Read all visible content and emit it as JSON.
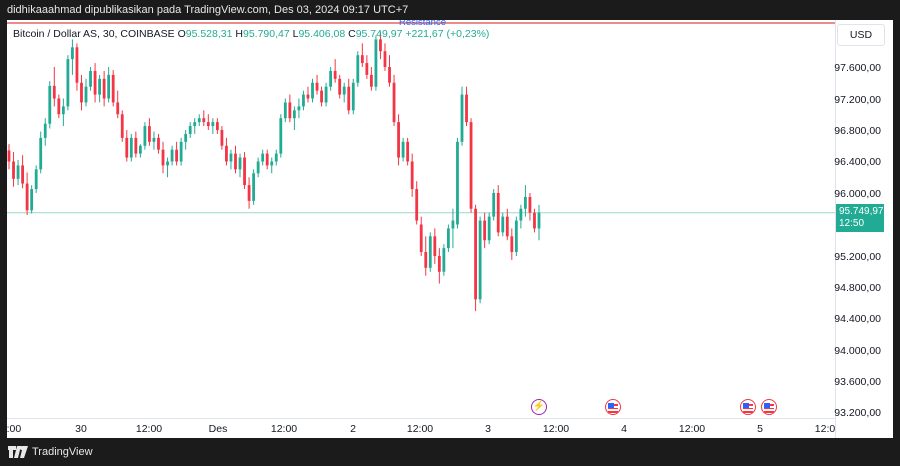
{
  "header": {
    "text": "didhikaaahmad dipublikasikan pada TradingView.com, Des 03, 2024 09:17 UTC+7"
  },
  "legend": {
    "symbol": "Bitcoin / Dollar AS, 30, COINBASE",
    "o_label": "O",
    "o_value": "95.528,31",
    "h_label": "H",
    "h_value": "95.790,47",
    "l_label": "L",
    "l_value": "95.406,08",
    "c_label": "C",
    "c_value": "95.749,97",
    "change": "+221,67 (+0,23%)"
  },
  "currency_button": "USD",
  "resistance_label": "Resistance",
  "price_tag": {
    "price": "95.749,97",
    "countdown": "12:50"
  },
  "y_axis": {
    "labels": [
      "97.600,00",
      "97.200,00",
      "96.800,00",
      "96.400,00",
      "96.000,00",
      "95.200,00",
      "94.800,00",
      "94.400,00",
      "94.000,00",
      "93.600,00",
      "93.200,00"
    ]
  },
  "x_axis": {
    "labels": [
      "2:00",
      "30",
      "12:00",
      "Des",
      "12:00",
      "2",
      "12:00",
      "3",
      "12:00",
      "4",
      "12:00",
      "5",
      "12:0"
    ]
  },
  "footer": {
    "brand": "TradingView"
  },
  "colors": {
    "up": "#22ab94",
    "down": "#f23645",
    "accent": "#2962ff",
    "resistance": "#e06666"
  },
  "events": [
    "lightning-event-icon",
    "us-flag-event-icon",
    "us-flag-event-icon",
    "us-flag-event-icon"
  ],
  "chart_data": {
    "type": "candlestick",
    "symbol": "Bitcoin / Dollar AS, 30, COINBASE",
    "ylim": [
      93200,
      97800
    ],
    "current_price": 95749.97,
    "resistance": 97950,
    "candles": [
      [
        96540,
        96620,
        96300,
        96400
      ],
      [
        96400,
        96520,
        96080,
        96180
      ],
      [
        96180,
        96420,
        96100,
        96350
      ],
      [
        96350,
        96480,
        96060,
        96120
      ],
      [
        96120,
        96260,
        95720,
        95780
      ],
      [
        95780,
        96100,
        95740,
        96050
      ],
      [
        96050,
        96350,
        96000,
        96300
      ],
      [
        96300,
        96780,
        96250,
        96700
      ],
      [
        96700,
        96950,
        96600,
        96880
      ],
      [
        96880,
        97420,
        96820,
        97360
      ],
      [
        97360,
        97600,
        97100,
        97200
      ],
      [
        97200,
        97250,
        96950,
        97000
      ],
      [
        97000,
        97200,
        96850,
        97100
      ],
      [
        97100,
        97750,
        97050,
        97700
      ],
      [
        97700,
        97950,
        97500,
        97850
      ],
      [
        97850,
        97900,
        97300,
        97400
      ],
      [
        97400,
        97500,
        97050,
        97150
      ],
      [
        97150,
        97450,
        97100,
        97350
      ],
      [
        97350,
        97600,
        97300,
        97550
      ],
      [
        97550,
        97650,
        97150,
        97250
      ],
      [
        97250,
        97500,
        97150,
        97450
      ],
      [
        97450,
        97550,
        97100,
        97200
      ],
      [
        97200,
        97600,
        97150,
        97500
      ],
      [
        97500,
        97560,
        97100,
        97150
      ],
      [
        97150,
        97300,
        96950,
        97000
      ],
      [
        97000,
        97050,
        96650,
        96700
      ],
      [
        96700,
        96800,
        96400,
        96450
      ],
      [
        96450,
        96750,
        96400,
        96700
      ],
      [
        96700,
        96780,
        96450,
        96500
      ],
      [
        96500,
        96620,
        96450,
        96600
      ],
      [
        96600,
        96900,
        96550,
        96850
      ],
      [
        96850,
        96950,
        96600,
        96650
      ],
      [
        96650,
        96780,
        96550,
        96700
      ],
      [
        96700,
        96750,
        96500,
        96550
      ],
      [
        96550,
        96650,
        96250,
        96350
      ],
      [
        96350,
        96450,
        96200,
        96400
      ],
      [
        96400,
        96600,
        96350,
        96550
      ],
      [
        96550,
        96650,
        96350,
        96400
      ],
      [
        96400,
        96700,
        96350,
        96650
      ],
      [
        96650,
        96800,
        96550,
        96750
      ],
      [
        96750,
        96900,
        96700,
        96850
      ],
      [
        96850,
        96950,
        96750,
        96900
      ],
      [
        96900,
        97000,
        96850,
        96950
      ],
      [
        96950,
        97050,
        96850,
        96900
      ],
      [
        96900,
        97000,
        96800,
        96850
      ],
      [
        96850,
        96950,
        96750,
        96900
      ],
      [
        96900,
        96950,
        96750,
        96800
      ],
      [
        96800,
        96850,
        96550,
        96600
      ],
      [
        96600,
        96700,
        96350,
        96400
      ],
      [
        96400,
        96550,
        96300,
        96500
      ],
      [
        96500,
        96600,
        96250,
        96300
      ],
      [
        96300,
        96500,
        96200,
        96450
      ],
      [
        96450,
        96520,
        96050,
        96100
      ],
      [
        96100,
        96200,
        95800,
        95900
      ],
      [
        95900,
        96300,
        95850,
        96250
      ],
      [
        96250,
        96450,
        96200,
        96400
      ],
      [
        96400,
        96550,
        96350,
        96500
      ],
      [
        96500,
        96550,
        96300,
        96350
      ],
      [
        96350,
        96450,
        96250,
        96400
      ],
      [
        96400,
        96550,
        96350,
        96500
      ],
      [
        96500,
        97000,
        96450,
        96950
      ],
      [
        96950,
        97200,
        96900,
        97150
      ],
      [
        97150,
        97250,
        96900,
        96950
      ],
      [
        96950,
        97100,
        96800,
        97050
      ],
      [
        97050,
        97200,
        96950,
        97100
      ],
      [
        97100,
        97300,
        97050,
        97250
      ],
      [
        97250,
        97350,
        97150,
        97200
      ],
      [
        97200,
        97450,
        97150,
        97400
      ],
      [
        97400,
        97500,
        97250,
        97300
      ],
      [
        97300,
        97350,
        97100,
        97150
      ],
      [
        97150,
        97400,
        97100,
        97350
      ],
      [
        97350,
        97600,
        97300,
        97550
      ],
      [
        97550,
        97700,
        97400,
        97450
      ],
      [
        97450,
        97500,
        97200,
        97250
      ],
      [
        97250,
        97400,
        97150,
        97350
      ],
      [
        97350,
        97450,
        97000,
        97050
      ],
      [
        97050,
        97450,
        97000,
        97400
      ],
      [
        97400,
        97800,
        97350,
        97750
      ],
      [
        97750,
        97900,
        97600,
        97650
      ],
      [
        97650,
        97750,
        97450,
        97500
      ],
      [
        97500,
        97600,
        97300,
        97350
      ],
      [
        97350,
        98000,
        97300,
        97950
      ],
      [
        97950,
        98050,
        97700,
        97800
      ],
      [
        97800,
        97900,
        97550,
        97600
      ],
      [
        97600,
        97750,
        97350,
        97400
      ],
      [
        97400,
        97500,
        96850,
        96900
      ],
      [
        96900,
        97000,
        96350,
        96450
      ],
      [
        96450,
        96700,
        96400,
        96650
      ],
      [
        96650,
        96700,
        96350,
        96400
      ],
      [
        96400,
        96500,
        95950,
        96050
      ],
      [
        96050,
        96150,
        95600,
        95650
      ],
      [
        95600,
        95700,
        95200,
        95250
      ],
      [
        95250,
        95450,
        94950,
        95050
      ],
      [
        95050,
        95500,
        95000,
        95450
      ],
      [
        95450,
        95550,
        95100,
        95200
      ],
      [
        95200,
        95300,
        94850,
        95000
      ],
      [
        95000,
        95350,
        94950,
        95300
      ],
      [
        95300,
        95600,
        95250,
        95550
      ],
      [
        95550,
        95800,
        95300,
        95650
      ],
      [
        95600,
        96700,
        95550,
        96650
      ],
      [
        96650,
        97350,
        96600,
        97250
      ],
      [
        97250,
        97350,
        96850,
        96900
      ],
      [
        96900,
        96950,
        95750,
        95800
      ],
      [
        95800,
        95850,
        94500,
        94650
      ],
      [
        94650,
        95700,
        94600,
        95650
      ],
      [
        95650,
        95750,
        95300,
        95400
      ],
      [
        95400,
        95750,
        95350,
        95700
      ],
      [
        95700,
        96050,
        95650,
        96000
      ],
      [
        96000,
        96100,
        95450,
        95500
      ],
      [
        95500,
        95750,
        95450,
        95700
      ],
      [
        95700,
        95800,
        95400,
        95450
      ],
      [
        95450,
        95550,
        95150,
        95250
      ],
      [
        95250,
        95700,
        95200,
        95650
      ],
      [
        95650,
        95850,
        95550,
        95800
      ],
      [
        95800,
        96100,
        95700,
        95950
      ],
      [
        95950,
        96000,
        95650,
        95750
      ],
      [
        95750,
        95800,
        95500,
        95550
      ],
      [
        95550,
        95850,
        95400,
        95750
      ]
    ]
  }
}
